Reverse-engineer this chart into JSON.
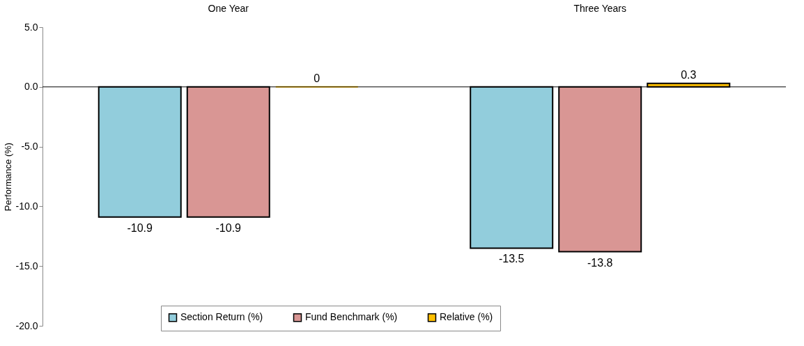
{
  "chart_data": {
    "type": "bar",
    "ylabel": "Performance (%)",
    "categories": [
      "One Year",
      "Three Years"
    ],
    "series": [
      {
        "name": "Section Return (%)",
        "color": "#92cddc",
        "values": [
          -10.9,
          -13.5
        ]
      },
      {
        "name": "Fund Benchmark (%)",
        "color": "#d99694",
        "values": [
          -10.9,
          -13.8
        ]
      },
      {
        "name": "Relative (%)",
        "color": "#ffc000",
        "values": [
          0,
          0.3
        ]
      }
    ],
    "ylim": [
      -20,
      5
    ],
    "yticks": [
      {
        "value": -20,
        "label": "-20.0"
      },
      {
        "value": -15,
        "label": "-15.0"
      },
      {
        "value": -10,
        "label": "-10.0"
      },
      {
        "value": -5,
        "label": "-5.0"
      },
      {
        "value": 0,
        "label": "0.0"
      },
      {
        "value": 5,
        "label": "5.0"
      }
    ],
    "ref_lines": [
      {
        "axis": "y",
        "value": 0,
        "color": "#000000"
      }
    ],
    "data_labels": true,
    "grid": false,
    "legend": "bottom"
  }
}
